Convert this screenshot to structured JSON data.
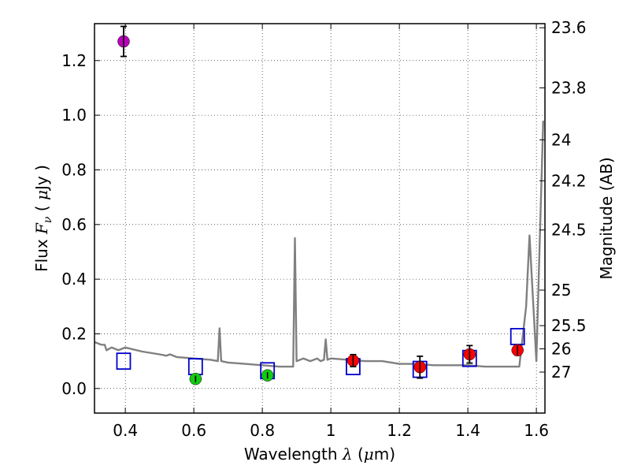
{
  "chart_data": {
    "type": "scatter",
    "xlabel": "Wavelength  λ (μm)",
    "ylabel": "Flux  Fν  ( μJy )",
    "ylabel_right": "Magnitude (AB)",
    "xlim": [
      0.31,
      1.625
    ],
    "ylim": [
      -0.09,
      1.335
    ],
    "grid": true,
    "x_ticks": [
      0.4,
      0.6,
      0.8,
      1.0,
      1.2,
      1.4,
      1.6
    ],
    "x_tick_labels": [
      "0.4",
      "0.6",
      "0.8",
      "1",
      "1.2",
      "1.4",
      "1.6"
    ],
    "y_ticks": [
      0.0,
      0.2,
      0.4,
      0.6,
      0.8,
      1.0,
      1.2
    ],
    "y_tick_labels": [
      "0.0",
      "0.2",
      "0.4",
      "0.6",
      "0.8",
      "1.0",
      "1.2"
    ],
    "mag_ticks": [
      {
        "label": "23.6",
        "flux": 1.32
      },
      {
        "label": "23.8",
        "flux": 1.1
      },
      {
        "label": "24",
        "flux": 0.91
      },
      {
        "label": "24.2",
        "flux": 0.76
      },
      {
        "label": "24.5",
        "flux": 0.58
      },
      {
        "label": "25",
        "flux": 0.36
      },
      {
        "label": "25.5",
        "flux": 0.23
      },
      {
        "label": "26",
        "flux": 0.145
      },
      {
        "label": "27",
        "flux": 0.06
      }
    ],
    "series": [
      {
        "name": "model-spectrum",
        "kind": "line",
        "color": "#808080",
        "x": [
          0.31,
          0.33,
          0.34,
          0.345,
          0.36,
          0.38,
          0.4,
          0.45,
          0.5,
          0.52,
          0.53,
          0.55,
          0.6,
          0.65,
          0.67,
          0.675,
          0.68,
          0.7,
          0.75,
          0.8,
          0.85,
          0.89,
          0.895,
          0.9,
          0.92,
          0.94,
          0.96,
          0.97,
          0.98,
          0.985,
          0.99,
          1.0,
          1.05,
          1.1,
          1.15,
          1.2,
          1.25,
          1.3,
          1.35,
          1.4,
          1.45,
          1.5,
          1.55,
          1.57,
          1.58,
          1.6,
          1.61,
          1.62
        ],
        "y": [
          0.17,
          0.16,
          0.16,
          0.14,
          0.15,
          0.14,
          0.15,
          0.135,
          0.125,
          0.12,
          0.125,
          0.115,
          0.11,
          0.105,
          0.1,
          0.22,
          0.1,
          0.095,
          0.09,
          0.085,
          0.08,
          0.08,
          0.55,
          0.1,
          0.11,
          0.1,
          0.11,
          0.1,
          0.105,
          0.18,
          0.105,
          0.11,
          0.105,
          0.1,
          0.1,
          0.09,
          0.09,
          0.085,
          0.085,
          0.085,
          0.08,
          0.08,
          0.08,
          0.3,
          0.56,
          0.1,
          0.55,
          0.98
        ]
      },
      {
        "name": "model-band-fluxes",
        "kind": "open-square",
        "color": "#0000cc",
        "x": [
          0.395,
          0.605,
          0.815,
          1.065,
          1.26,
          1.405,
          1.545
        ],
        "y": [
          0.1,
          0.08,
          0.065,
          0.08,
          0.07,
          0.11,
          0.19
        ]
      },
      {
        "name": "violet-band",
        "kind": "point",
        "color": "#bb00bb",
        "x": [
          0.395
        ],
        "y": [
          1.27
        ],
        "err": [
          0.055
        ]
      },
      {
        "name": "green-bands",
        "kind": "point",
        "color": "#11cc11",
        "x": [
          0.605,
          0.815
        ],
        "y": [
          0.035,
          0.048
        ],
        "err": [
          0.012,
          0.012
        ]
      },
      {
        "name": "red-bands",
        "kind": "point",
        "color": "#ff0000",
        "x": [
          1.065,
          1.26,
          1.405,
          1.545
        ],
        "y": [
          0.102,
          0.078,
          0.125,
          0.14
        ],
        "err": [
          0.022,
          0.04,
          0.032,
          0.018
        ]
      }
    ]
  }
}
